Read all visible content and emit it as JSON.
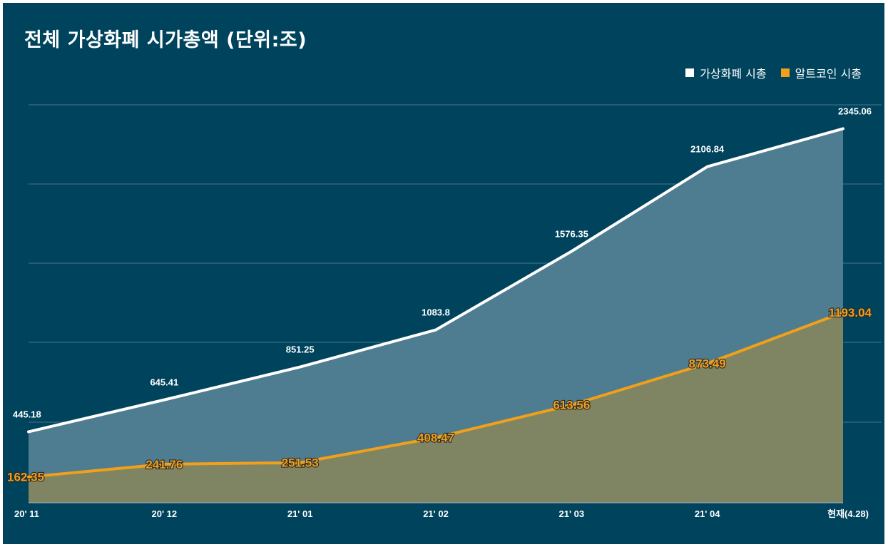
{
  "chart_data": {
    "type": "area",
    "title": "전체 가상화폐 시가총액 (단위:조)",
    "categories": [
      "20' 11",
      "20' 12",
      "21' 01",
      "21' 02",
      "21' 03",
      "21' 04",
      "현재(4.28)"
    ],
    "series": [
      {
        "name": "가상화폐 시총",
        "color": "#ffffff",
        "fill": "#4e7c90",
        "values": [
          445.18,
          645.41,
          851.25,
          1083.8,
          1576.35,
          2106.84,
          2345.06
        ],
        "labels": [
          "445.18",
          "645.41",
          "851.25",
          "1083.8",
          "1576.35",
          "2106.84",
          "2345.06"
        ]
      },
      {
        "name": "알트코인 시총",
        "color": "#f0a01c",
        "fill": "#7f8562",
        "values": [
          162.35,
          241.76,
          251.53,
          408.47,
          613.56,
          873.49,
          1193.04
        ],
        "labels": [
          "162.35",
          "241.76",
          "251.53",
          "408.47",
          "613.56",
          "873.49",
          "1193.04"
        ]
      }
    ],
    "ylim": [
      0,
      2500
    ],
    "grid": true,
    "legend": "top-right",
    "xlabel": "",
    "ylabel": ""
  }
}
